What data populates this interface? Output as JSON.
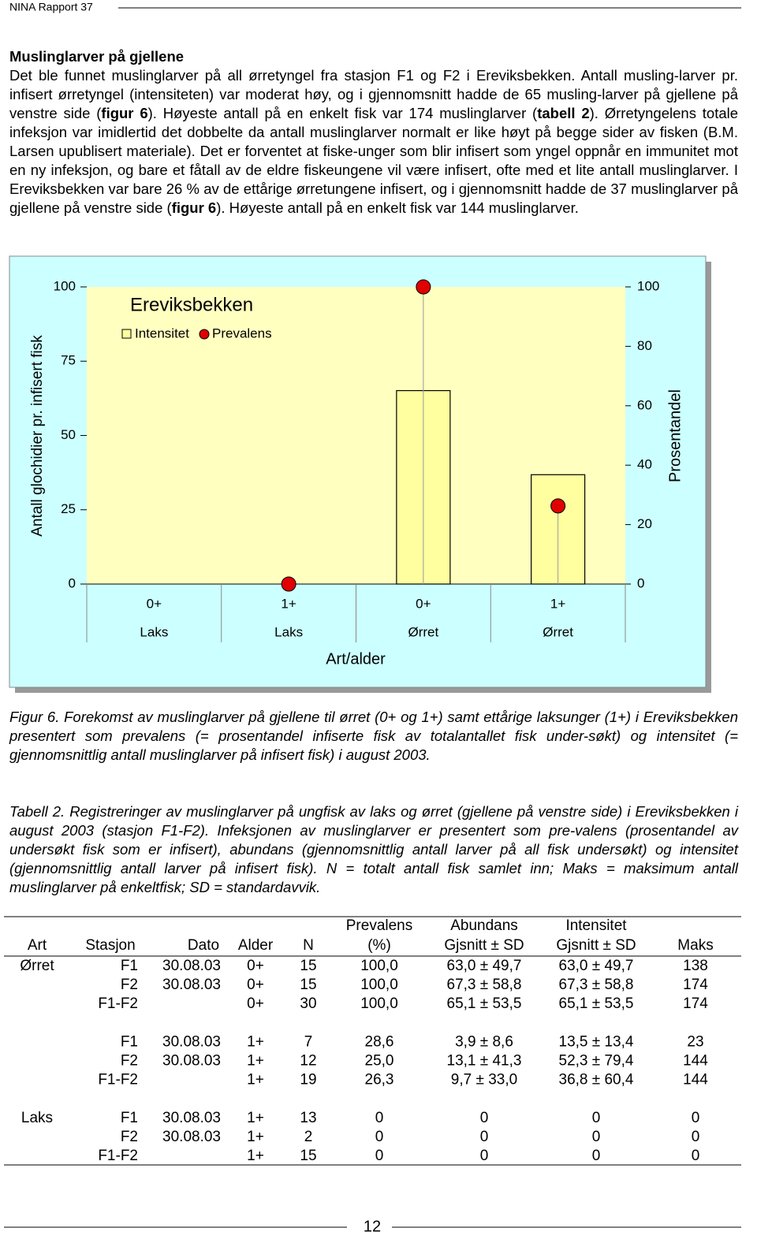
{
  "header": {
    "title": "NINA Rapport 37"
  },
  "section": {
    "heading": "Muslinglarver på gjellene",
    "paragraph": [
      {
        "text": "Det ble funnet muslinglarver på all ørretyngel fra stasjon F1 og F2 i Ereviksbekken. Antall musling-larver pr. infisert ørretyngel (intensiteten) var moderat høy, og i gjennomsnitt hadde de 65 musling-larver på gjellene på venstre side (",
        "bold": false
      },
      {
        "text": "figur 6",
        "bold": true
      },
      {
        "text": "). Høyeste antall på en enkelt fisk var 174 muslinglarver (",
        "bold": false
      },
      {
        "text": "tabell 2",
        "bold": true
      },
      {
        "text": "). Ørretyngelens totale infeksjon var imidlertid det dobbelte da antall muslinglarver normalt er like høyt på begge sider av fisken (B.M. Larsen upublisert materiale). Det er forventet at fiske-unger som blir infisert som yngel oppnår en immunitet mot en ny infeksjon, og bare et fåtall av de eldre fiskeungene vil være infisert, ofte med et lite antall muslinglarver. I Ereviksbekken var bare 26 % av de ettårige ørretungene infisert, og i gjennomsnitt hadde de 37 muslinglarver på gjellene på venstre side (",
        "bold": false
      },
      {
        "text": "figur 6",
        "bold": true
      },
      {
        "text": "). Høyeste antall på en enkelt fisk var 144 muslinglarver.",
        "bold": false
      }
    ]
  },
  "chart_data": {
    "type": "bar",
    "title": "Ereviksbekken",
    "categories": [
      "0+",
      "1+",
      "0+",
      "1+"
    ],
    "category_groups": [
      "Laks",
      "Laks",
      "Ørret",
      "Ørret"
    ],
    "xlabel": "Art/alder",
    "ylabel": "Antall glochidier pr. infisert fisk",
    "y2label": "Prosentandel",
    "ylim": [
      0,
      100
    ],
    "yticks": [
      0,
      25,
      50,
      75,
      100
    ],
    "y2lim": [
      0,
      100
    ],
    "y2ticks": [
      0,
      20,
      40,
      60,
      80,
      100
    ],
    "series": [
      {
        "name": "Intensitet",
        "color": "#ffffa0",
        "values": [
          null,
          0,
          65.1,
          36.8
        ]
      },
      {
        "name": "Prevalens",
        "color": "#e00000",
        "axis": "y2",
        "values": [
          null,
          0,
          100,
          26.3
        ]
      }
    ]
  },
  "figure_caption": {
    "label": "Figur 6.",
    "text": "Forekomst av muslinglarver på gjellene til ørret (0+ og 1+) samt ettårige laksunger (1+) i Ereviksbekken presentert som prevalens (= prosentandel infiserte fisk av totalantallet fisk under-søkt) og intensitet (= gjennomsnittlig antall muslinglarver på infisert fisk) i august 2003."
  },
  "table_caption": {
    "label": "Tabell 2.",
    "text": "Registreringer av muslinglarver på ungfisk av laks og ørret (gjellene på venstre side) i Ereviksbekken i august 2003 (stasjon F1-F2). Infeksjonen av muslinglarver er presentert som pre-valens (prosentandel av undersøkt fisk som er infisert), abundans (gjennomsnittlig antall larver på all fisk undersøkt) og intensitet (gjennomsnittlig antall larver på infisert fisk). N = totalt antall fisk samlet inn; Maks = maksimum antall muslinglarver på enkeltfisk; SD = standardavvik."
  },
  "table": {
    "columns": [
      [
        "Art"
      ],
      [
        "Stasjon"
      ],
      [
        "Dato"
      ],
      [
        "Alder"
      ],
      [
        "N"
      ],
      [
        "Prevalens",
        "(%)"
      ],
      [
        "Abundans",
        "Gjsnitt ± SD"
      ],
      [
        "Intensitet",
        "Gjsnitt ± SD"
      ],
      [
        "Maks"
      ]
    ],
    "groups": [
      [
        [
          "Ørret",
          "F1",
          "30.08.03",
          "0+",
          "15",
          "100,0",
          "63,0 ± 49,7",
          "63,0 ± 49,7",
          "138"
        ],
        [
          null,
          "F2",
          "30.08.03",
          "0+",
          "15",
          "100,0",
          "67,3 ± 58,8",
          "67,3 ± 58,8",
          "174"
        ],
        [
          null,
          "F1-F2",
          null,
          "0+",
          "30",
          "100,0",
          "65,1 ± 53,5",
          "65,1 ± 53,5",
          "174"
        ]
      ],
      [
        [
          null,
          "F1",
          "30.08.03",
          "1+",
          "7",
          "28,6",
          "3,9 ± 8,6",
          "13,5 ± 13,4",
          "23"
        ],
        [
          null,
          "F2",
          "30.08.03",
          "1+",
          "12",
          "25,0",
          "13,1 ± 41,3",
          "52,3 ± 79,4",
          "144"
        ],
        [
          null,
          "F1-F2",
          null,
          "1+",
          "19",
          "26,3",
          "9,7 ± 33,0",
          "36,8 ± 60,4",
          "144"
        ]
      ],
      [
        [
          "Laks",
          "F1",
          "30.08.03",
          "1+",
          "13",
          "0",
          "0",
          "0",
          "0"
        ],
        [
          null,
          "F2",
          "30.08.03",
          "1+",
          "2",
          "0",
          "0",
          "0",
          "0"
        ],
        [
          null,
          "F1-F2",
          null,
          "1+",
          "15",
          "0",
          "0",
          "0",
          "0"
        ]
      ]
    ]
  },
  "footer": {
    "page": "12"
  }
}
